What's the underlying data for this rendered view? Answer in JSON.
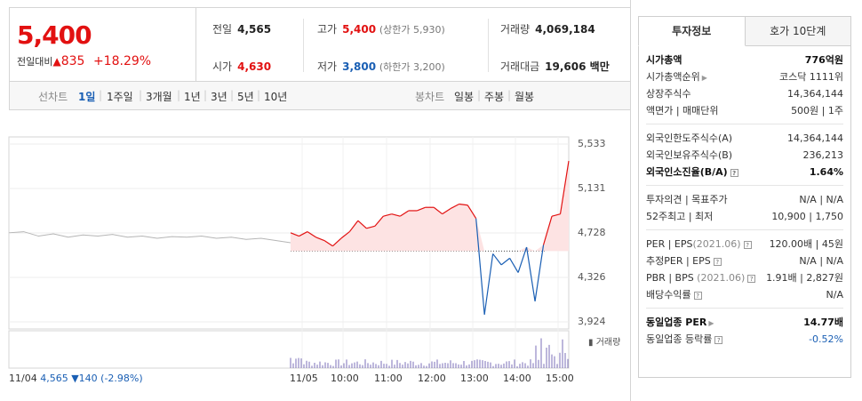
{
  "header": {
    "price": "5,400",
    "change_label": "전일대비",
    "change_arrow": "▲",
    "change_value": "835",
    "change_pct": "+18.29%"
  },
  "info": {
    "prev_close_label": "전일",
    "prev_close": "4,565",
    "high_label": "고가",
    "high": "5,400",
    "upper_limit": "(상한가 5,930)",
    "volume_label": "거래량",
    "volume": "4,069,184",
    "open_label": "시가",
    "open": "4,630",
    "low_label": "저가",
    "low": "3,800",
    "lower_limit": "(하한가 3,200)",
    "amount_label": "거래대금",
    "amount": "19,606 백만"
  },
  "tabs": {
    "line_chart_label": "선차트",
    "periods": [
      "1일",
      "1주일",
      "3개월",
      "1년",
      "3년",
      "5년",
      "10년"
    ],
    "candle_chart_label": "봉차트",
    "candles": [
      "일봉",
      "주봉",
      "월봉"
    ]
  },
  "chart_data": {
    "type": "line",
    "y_ticks": [
      "5,533",
      "5,131",
      "4,728",
      "4,326",
      "3,924"
    ],
    "ylim": [
      3924,
      5533
    ],
    "x_ticks": [
      "11/05",
      "10:00",
      "11:00",
      "12:00",
      "13:00",
      "14:00",
      "15:00"
    ],
    "prev_day": {
      "label": "11/04",
      "close": "4,565",
      "change": "▼140",
      "pct": "(-2.98%)"
    },
    "volume_label": "거래량",
    "colors": {
      "up": "#e21111",
      "down": "#1a5fb4",
      "prev": "#b5b5b5",
      "fill": "#fde3e3"
    },
    "series": [
      {
        "values": [
          4730,
          4700,
          4740,
          4690,
          4660,
          4610,
          4680,
          4740,
          4840,
          4770,
          4790,
          4880,
          4900,
          4880,
          4930,
          4930,
          4960,
          4960,
          4900,
          4950,
          4990,
          4980,
          4860,
          3990,
          4540,
          4440,
          4500,
          4370,
          4600,
          4110,
          4620,
          4880,
          4900,
          5380
        ]
      }
    ],
    "prev_series_values": [
      4730,
      4740,
      4700,
      4720,
      4690,
      4710,
      4700,
      4715,
      4690,
      4700,
      4680,
      4695,
      4690,
      4700,
      4680,
      4690,
      4670,
      4680,
      4660,
      4640
    ]
  },
  "panel": {
    "tab_invest": "투자정보",
    "tab_quote": "호가 10단계",
    "sections": [
      [
        {
          "k": "시가총액",
          "v": "776억원",
          "bold": true
        },
        {
          "k": "시가총액순위",
          "arrow": true,
          "v": "코스닥 1111위"
        },
        {
          "k": "상장주식수",
          "v": "14,364,144"
        },
        {
          "k": "액면가 | 매매단위",
          "v": "500원 | 1주"
        }
      ],
      [
        {
          "k": "외국인한도주식수(A)",
          "v": "14,364,144"
        },
        {
          "k": "외국인보유주식수(B)",
          "v": "236,213"
        },
        {
          "k": "외국인소진율(B/A)",
          "q": true,
          "v": "1.64%",
          "bold": true
        }
      ],
      [
        {
          "k": "투자의견 | 목표주가",
          "v": "N/A | N/A"
        },
        {
          "k": "52주최고 | 최저",
          "v": "10,900 | 1,750"
        }
      ],
      [
        {
          "k": "PER | EPS",
          "gray": "(2021.06)",
          "q": true,
          "v": "120.00배 | 45원"
        },
        {
          "k": "추정PER | EPS",
          "q": true,
          "v": "N/A | N/A"
        },
        {
          "k": "PBR | BPS",
          "gray": " (2021.06)",
          "q": true,
          "v": "1.91배 | 2,827원"
        },
        {
          "k": "배당수익률",
          "q": true,
          "v": "N/A"
        }
      ],
      [
        {
          "k": "동일업종 PER",
          "arrow": true,
          "v": "14.77배",
          "bold": true
        },
        {
          "k": "동일업종 등락률",
          "q": true,
          "v": "-0.52%",
          "neg": true
        }
      ]
    ]
  }
}
